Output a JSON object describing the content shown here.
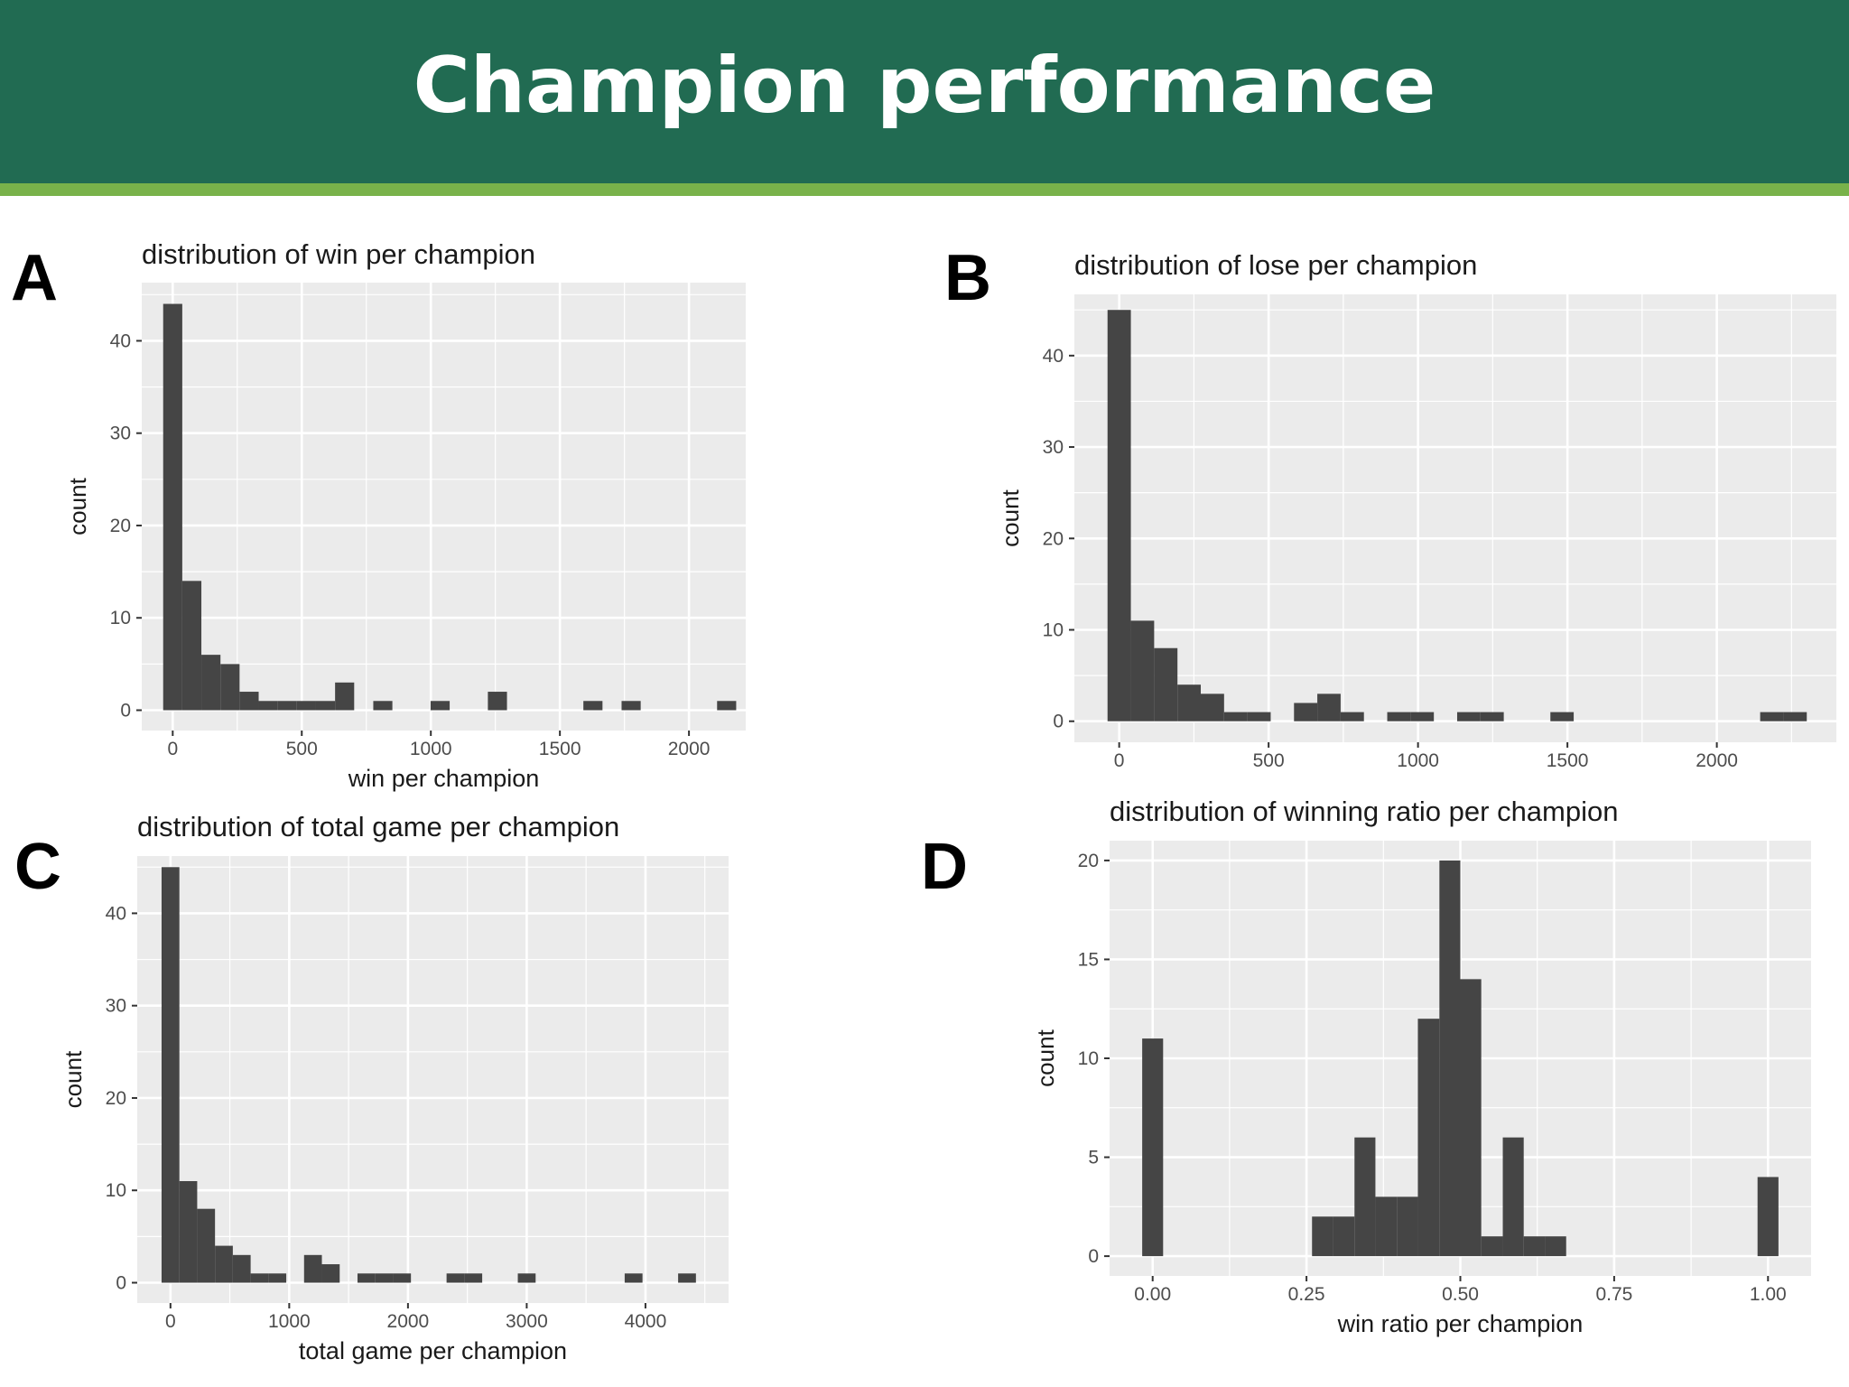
{
  "header": {
    "title": "Champion performance"
  },
  "panels": {
    "a": "A",
    "b": "B",
    "c": "C",
    "d": "D"
  },
  "colors": {
    "header_bg": "#216b52",
    "header_stripe": "#79b24a",
    "panel_bg": "#ebebeb",
    "bar_fill": "#454545",
    "grid": "#ffffff"
  },
  "chart_data": [
    {
      "id": "A",
      "type": "bar",
      "title": "distribution of win per champion",
      "xlabel": "win per champion",
      "ylabel": "count",
      "xlim": [
        -120,
        2220
      ],
      "ylim": [
        -2.2,
        46.3
      ],
      "xticks": [
        0,
        500,
        1000,
        1500,
        2000
      ],
      "yticks": [
        0,
        10,
        20,
        30,
        40
      ],
      "grid": true,
      "bins": [
        {
          "x0": -37,
          "x1": 37,
          "count": 44
        },
        {
          "x0": 37,
          "x1": 111,
          "count": 14
        },
        {
          "x0": 111,
          "x1": 185,
          "count": 6
        },
        {
          "x0": 185,
          "x1": 259,
          "count": 5
        },
        {
          "x0": 259,
          "x1": 333,
          "count": 2
        },
        {
          "x0": 333,
          "x1": 407,
          "count": 1
        },
        {
          "x0": 407,
          "x1": 481,
          "count": 1
        },
        {
          "x0": 481,
          "x1": 555,
          "count": 1
        },
        {
          "x0": 555,
          "x1": 629,
          "count": 1
        },
        {
          "x0": 629,
          "x1": 703,
          "count": 3
        },
        {
          "x0": 777,
          "x1": 851,
          "count": 1
        },
        {
          "x0": 999,
          "x1": 1073,
          "count": 1
        },
        {
          "x0": 1221,
          "x1": 1295,
          "count": 2
        },
        {
          "x0": 1591,
          "x1": 1665,
          "count": 1
        },
        {
          "x0": 1739,
          "x1": 1813,
          "count": 1
        },
        {
          "x0": 2109,
          "x1": 2183,
          "count": 1
        }
      ]
    },
    {
      "id": "B",
      "type": "bar",
      "title": "distribution of lose per champion",
      "xlabel": "",
      "ylabel": "count",
      "xlim": [
        -150,
        2400
      ],
      "ylim": [
        -2.3,
        46.7
      ],
      "xticks": [
        0,
        500,
        1000,
        1500,
        2000
      ],
      "yticks": [
        0,
        10,
        20,
        30,
        40
      ],
      "grid": true,
      "bins": [
        {
          "x0": -39,
          "x1": 39,
          "count": 45
        },
        {
          "x0": 39,
          "x1": 117,
          "count": 11
        },
        {
          "x0": 117,
          "x1": 195,
          "count": 8
        },
        {
          "x0": 195,
          "x1": 273,
          "count": 4
        },
        {
          "x0": 273,
          "x1": 351,
          "count": 3
        },
        {
          "x0": 351,
          "x1": 429,
          "count": 1
        },
        {
          "x0": 429,
          "x1": 507,
          "count": 1
        },
        {
          "x0": 585,
          "x1": 663,
          "count": 2
        },
        {
          "x0": 663,
          "x1": 741,
          "count": 3
        },
        {
          "x0": 741,
          "x1": 819,
          "count": 1
        },
        {
          "x0": 897,
          "x1": 975,
          "count": 1
        },
        {
          "x0": 975,
          "x1": 1053,
          "count": 1
        },
        {
          "x0": 1131,
          "x1": 1209,
          "count": 1
        },
        {
          "x0": 1209,
          "x1": 1287,
          "count": 1
        },
        {
          "x0": 1443,
          "x1": 1521,
          "count": 1
        },
        {
          "x0": 2145,
          "x1": 2223,
          "count": 1
        },
        {
          "x0": 2223,
          "x1": 2301,
          "count": 1
        }
      ]
    },
    {
      "id": "C",
      "type": "bar",
      "title": "distribution of total game per champion",
      "xlabel": "total game per champion",
      "ylabel": "count",
      "xlim": [
        -280,
        4700
      ],
      "ylim": [
        -2.2,
        46.2
      ],
      "xticks": [
        0,
        1000,
        2000,
        3000,
        4000
      ],
      "yticks": [
        0,
        10,
        20,
        30,
        40
      ],
      "grid": true,
      "bins": [
        {
          "x0": -75,
          "x1": 75,
          "count": 45
        },
        {
          "x0": 75,
          "x1": 225,
          "count": 11
        },
        {
          "x0": 225,
          "x1": 375,
          "count": 8
        },
        {
          "x0": 375,
          "x1": 525,
          "count": 4
        },
        {
          "x0": 525,
          "x1": 675,
          "count": 3
        },
        {
          "x0": 675,
          "x1": 825,
          "count": 1
        },
        {
          "x0": 825,
          "x1": 975,
          "count": 1
        },
        {
          "x0": 1125,
          "x1": 1275,
          "count": 3
        },
        {
          "x0": 1275,
          "x1": 1425,
          "count": 2
        },
        {
          "x0": 1575,
          "x1": 1725,
          "count": 1
        },
        {
          "x0": 1725,
          "x1": 1875,
          "count": 1
        },
        {
          "x0": 1875,
          "x1": 2025,
          "count": 1
        },
        {
          "x0": 2325,
          "x1": 2475,
          "count": 1
        },
        {
          "x0": 2475,
          "x1": 2625,
          "count": 1
        },
        {
          "x0": 2925,
          "x1": 3075,
          "count": 1
        },
        {
          "x0": 3825,
          "x1": 3975,
          "count": 1
        },
        {
          "x0": 4275,
          "x1": 4425,
          "count": 1
        }
      ]
    },
    {
      "id": "D",
      "type": "bar",
      "title": "distribution of winning ratio per champion",
      "xlabel": "win ratio per champion",
      "ylabel": "count",
      "xlim": [
        -0.07,
        1.07
      ],
      "ylim": [
        -1.0,
        21.0
      ],
      "xticks": [
        "0.00",
        "0.25",
        "0.50",
        "0.75",
        "1.00"
      ],
      "yticks": [
        0,
        5,
        10,
        15,
        20
      ],
      "grid": true,
      "bins": [
        {
          "x0": -0.017,
          "x1": 0.017,
          "count": 11
        },
        {
          "x0": 0.259,
          "x1": 0.293,
          "count": 2
        },
        {
          "x0": 0.293,
          "x1": 0.328,
          "count": 2
        },
        {
          "x0": 0.328,
          "x1": 0.362,
          "count": 6
        },
        {
          "x0": 0.362,
          "x1": 0.397,
          "count": 3
        },
        {
          "x0": 0.397,
          "x1": 0.431,
          "count": 3
        },
        {
          "x0": 0.431,
          "x1": 0.466,
          "count": 12
        },
        {
          "x0": 0.466,
          "x1": 0.5,
          "count": 20
        },
        {
          "x0": 0.5,
          "x1": 0.534,
          "count": 14
        },
        {
          "x0": 0.534,
          "x1": 0.569,
          "count": 1
        },
        {
          "x0": 0.569,
          "x1": 0.603,
          "count": 6
        },
        {
          "x0": 0.603,
          "x1": 0.638,
          "count": 1
        },
        {
          "x0": 0.638,
          "x1": 0.672,
          "count": 1
        },
        {
          "x0": 0.983,
          "x1": 1.017,
          "count": 4
        }
      ]
    }
  ]
}
